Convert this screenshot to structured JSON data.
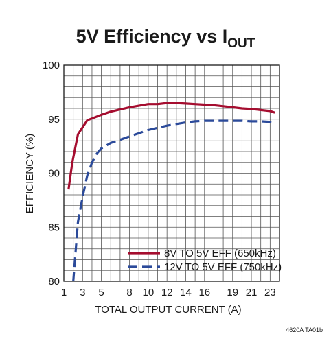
{
  "chart_data": {
    "type": "line",
    "title": {
      "main": "5V Efficiency vs I",
      "subscript": "OUT"
    },
    "xlabel": "TOTAL OUTPUT CURRENT (A)",
    "ylabel": "EFFICIENCY (%)",
    "xlim": [
      1,
      24
    ],
    "ylim": [
      80,
      100
    ],
    "x_ticks": [
      1,
      3,
      5,
      8,
      10,
      12,
      14,
      16,
      19,
      21,
      23
    ],
    "y_ticks": [
      80,
      85,
      90,
      95,
      100
    ],
    "grid": true,
    "legend_position": "bottom-right",
    "footnote": "4620A TA01b",
    "series": [
      {
        "name": "8V TO 5V EFF (650kHz)",
        "color": "#a50d2f",
        "style": "solid",
        "x": [
          1.5,
          1.9,
          2.5,
          3.5,
          5,
          6,
          7,
          8,
          9,
          10,
          11,
          12,
          13,
          14,
          15,
          16,
          17,
          18,
          19,
          20,
          21,
          22,
          23,
          23.5
        ],
        "y": [
          88.5,
          91.0,
          93.6,
          94.9,
          95.4,
          95.7,
          95.9,
          96.1,
          96.25,
          96.4,
          96.4,
          96.5,
          96.5,
          96.45,
          96.4,
          96.35,
          96.3,
          96.2,
          96.1,
          96.0,
          95.95,
          95.85,
          95.75,
          95.6
        ]
      },
      {
        "name": "12V TO 5V EFF (750kHz)",
        "color": "#2b4a9a",
        "style": "dashed",
        "x": [
          2.0,
          2.5,
          3.0,
          3.5,
          4.0,
          4.5,
          5.0,
          6.0,
          7.0,
          8.0,
          9.0,
          10.0,
          11.0,
          12.0,
          13.0,
          14.0,
          15.0,
          16.0,
          17.0,
          18.0,
          19.0,
          20.0,
          21.0,
          22.0,
          23.0,
          23.5
        ],
        "y": [
          80.0,
          85.5,
          87.8,
          89.8,
          91.0,
          91.8,
          92.3,
          92.8,
          93.1,
          93.4,
          93.7,
          94.0,
          94.2,
          94.4,
          94.55,
          94.7,
          94.8,
          94.85,
          94.85,
          94.85,
          94.85,
          94.85,
          94.8,
          94.8,
          94.75,
          94.7
        ]
      }
    ]
  }
}
